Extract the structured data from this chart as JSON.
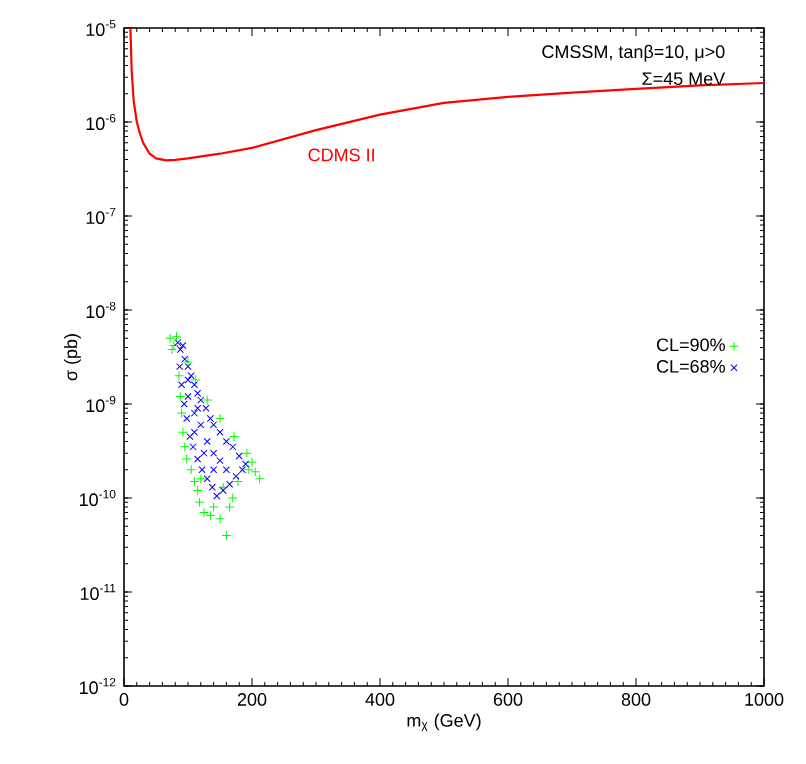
{
  "chart_data": {
    "type": "scatter",
    "xlabel": "m$_{χ}$ (GeV)",
    "ylabel": "σ (pb)",
    "annotations": [
      "CMSSM,  tanβ=10,  μ>0",
      "Σ=45 MeV"
    ],
    "log": "y",
    "legend": "right",
    "grid": false,
    "xlim": [
      0,
      1000
    ],
    "xticks": [
      0,
      200,
      400,
      600,
      800,
      1000
    ],
    "ylim": [
      1e-12,
      1e-05
    ],
    "yticks": [
      {
        "value": 1e-12,
        "label": "10$^{-12}$"
      },
      {
        "value": 1e-11,
        "label": "10$^{-11}$"
      },
      {
        "value": 1e-10,
        "label": "10$^{-10}$"
      },
      {
        "value": 1e-09,
        "label": "10$^{-9}$"
      },
      {
        "value": 1e-08,
        "label": "10$^{-8}$"
      },
      {
        "value": 1e-07,
        "label": "10$^{-7}$"
      },
      {
        "value": 1e-06,
        "label": "10$^{-6}$"
      },
      {
        "value": 1e-05,
        "label": "10$^{-5}$"
      }
    ],
    "series": [
      {
        "name": "CDMS II",
        "type": "line",
        "color": "#ff0000",
        "line_style": "solid",
        "marker": "none",
        "x": [
          10,
          12,
          15,
          20,
          25,
          30,
          40,
          50,
          66,
          80,
          100,
          150,
          200,
          300,
          400,
          500,
          600,
          700,
          800,
          900,
          1000
        ],
        "values": [
          1e-05,
          3.5e-06,
          1.7e-06,
          1e-06,
          7.5e-07,
          6e-07,
          4.6e-07,
          4.1e-07,
          3.9e-07,
          3.95e-07,
          4.1e-07,
          4.6e-07,
          5.3e-07,
          8.2e-07,
          1.2e-06,
          1.6e-06,
          1.85e-06,
          2.05e-06,
          2.25e-06,
          2.45e-06,
          2.6e-06
        ]
      },
      {
        "name": "CL=90%",
        "color": "#00ff00",
        "marker": "plus",
        "x": [
          72,
          78,
          75,
          82,
          86,
          88,
          90,
          92,
          95,
          98,
          105,
          110,
          115,
          118,
          125,
          135,
          150,
          160,
          165,
          170,
          178,
          195,
          205,
          212,
          200,
          192,
          172,
          150,
          130,
          112,
          100,
          140,
          155,
          120
        ],
        "values": [
          5e-09,
          4.2e-09,
          3.8e-09,
          5.2e-09,
          2e-09,
          1.2e-09,
          8e-10,
          5e-10,
          3.5e-10,
          2.6e-10,
          2e-10,
          1.5e-10,
          1.2e-10,
          9e-11,
          7e-11,
          6.5e-11,
          6e-11,
          4e-11,
          8e-11,
          1e-10,
          1.5e-10,
          2e-10,
          1.9e-10,
          1.6e-10,
          2.4e-10,
          3e-10,
          4.5e-10,
          7e-10,
          1.1e-09,
          1.8e-09,
          2.8e-09,
          8e-11,
          1.3e-10,
          1.6e-10
        ]
      },
      {
        "name": "CL=68%",
        "color": "#0000ff",
        "marker": "cross",
        "x": [
          84,
          88,
          92,
          95,
          100,
          105,
          110,
          115,
          120,
          128,
          135,
          140,
          150,
          160,
          170,
          180,
          190,
          185,
          175,
          165,
          155,
          145,
          138,
          130,
          122,
          115,
          108,
          103,
          98,
          94,
          90,
          87,
          100,
          110,
          120,
          130,
          140,
          150,
          160,
          110,
          125,
          140,
          100,
          115
        ],
        "values": [
          4.5e-09,
          3.8e-09,
          4.2e-09,
          3e-09,
          2.5e-09,
          2e-09,
          1.6e-09,
          1.3e-09,
          1.1e-09,
          9e-10,
          7e-10,
          6e-10,
          5e-10,
          4e-10,
          3.5e-10,
          2.8e-10,
          2.3e-10,
          2e-10,
          1.7e-10,
          1.4e-10,
          1.2e-10,
          1.05e-10,
          1.3e-10,
          1.6e-10,
          2e-10,
          2.6e-10,
          3.5e-10,
          4.5e-10,
          7e-10,
          1e-09,
          1.6e-09,
          2.5e-09,
          1.2e-09,
          8e-10,
          6e-10,
          4e-10,
          3e-10,
          2.5e-10,
          2e-10,
          5e-10,
          3e-10,
          2e-10,
          1.8e-09,
          9e-10
        ]
      }
    ]
  }
}
